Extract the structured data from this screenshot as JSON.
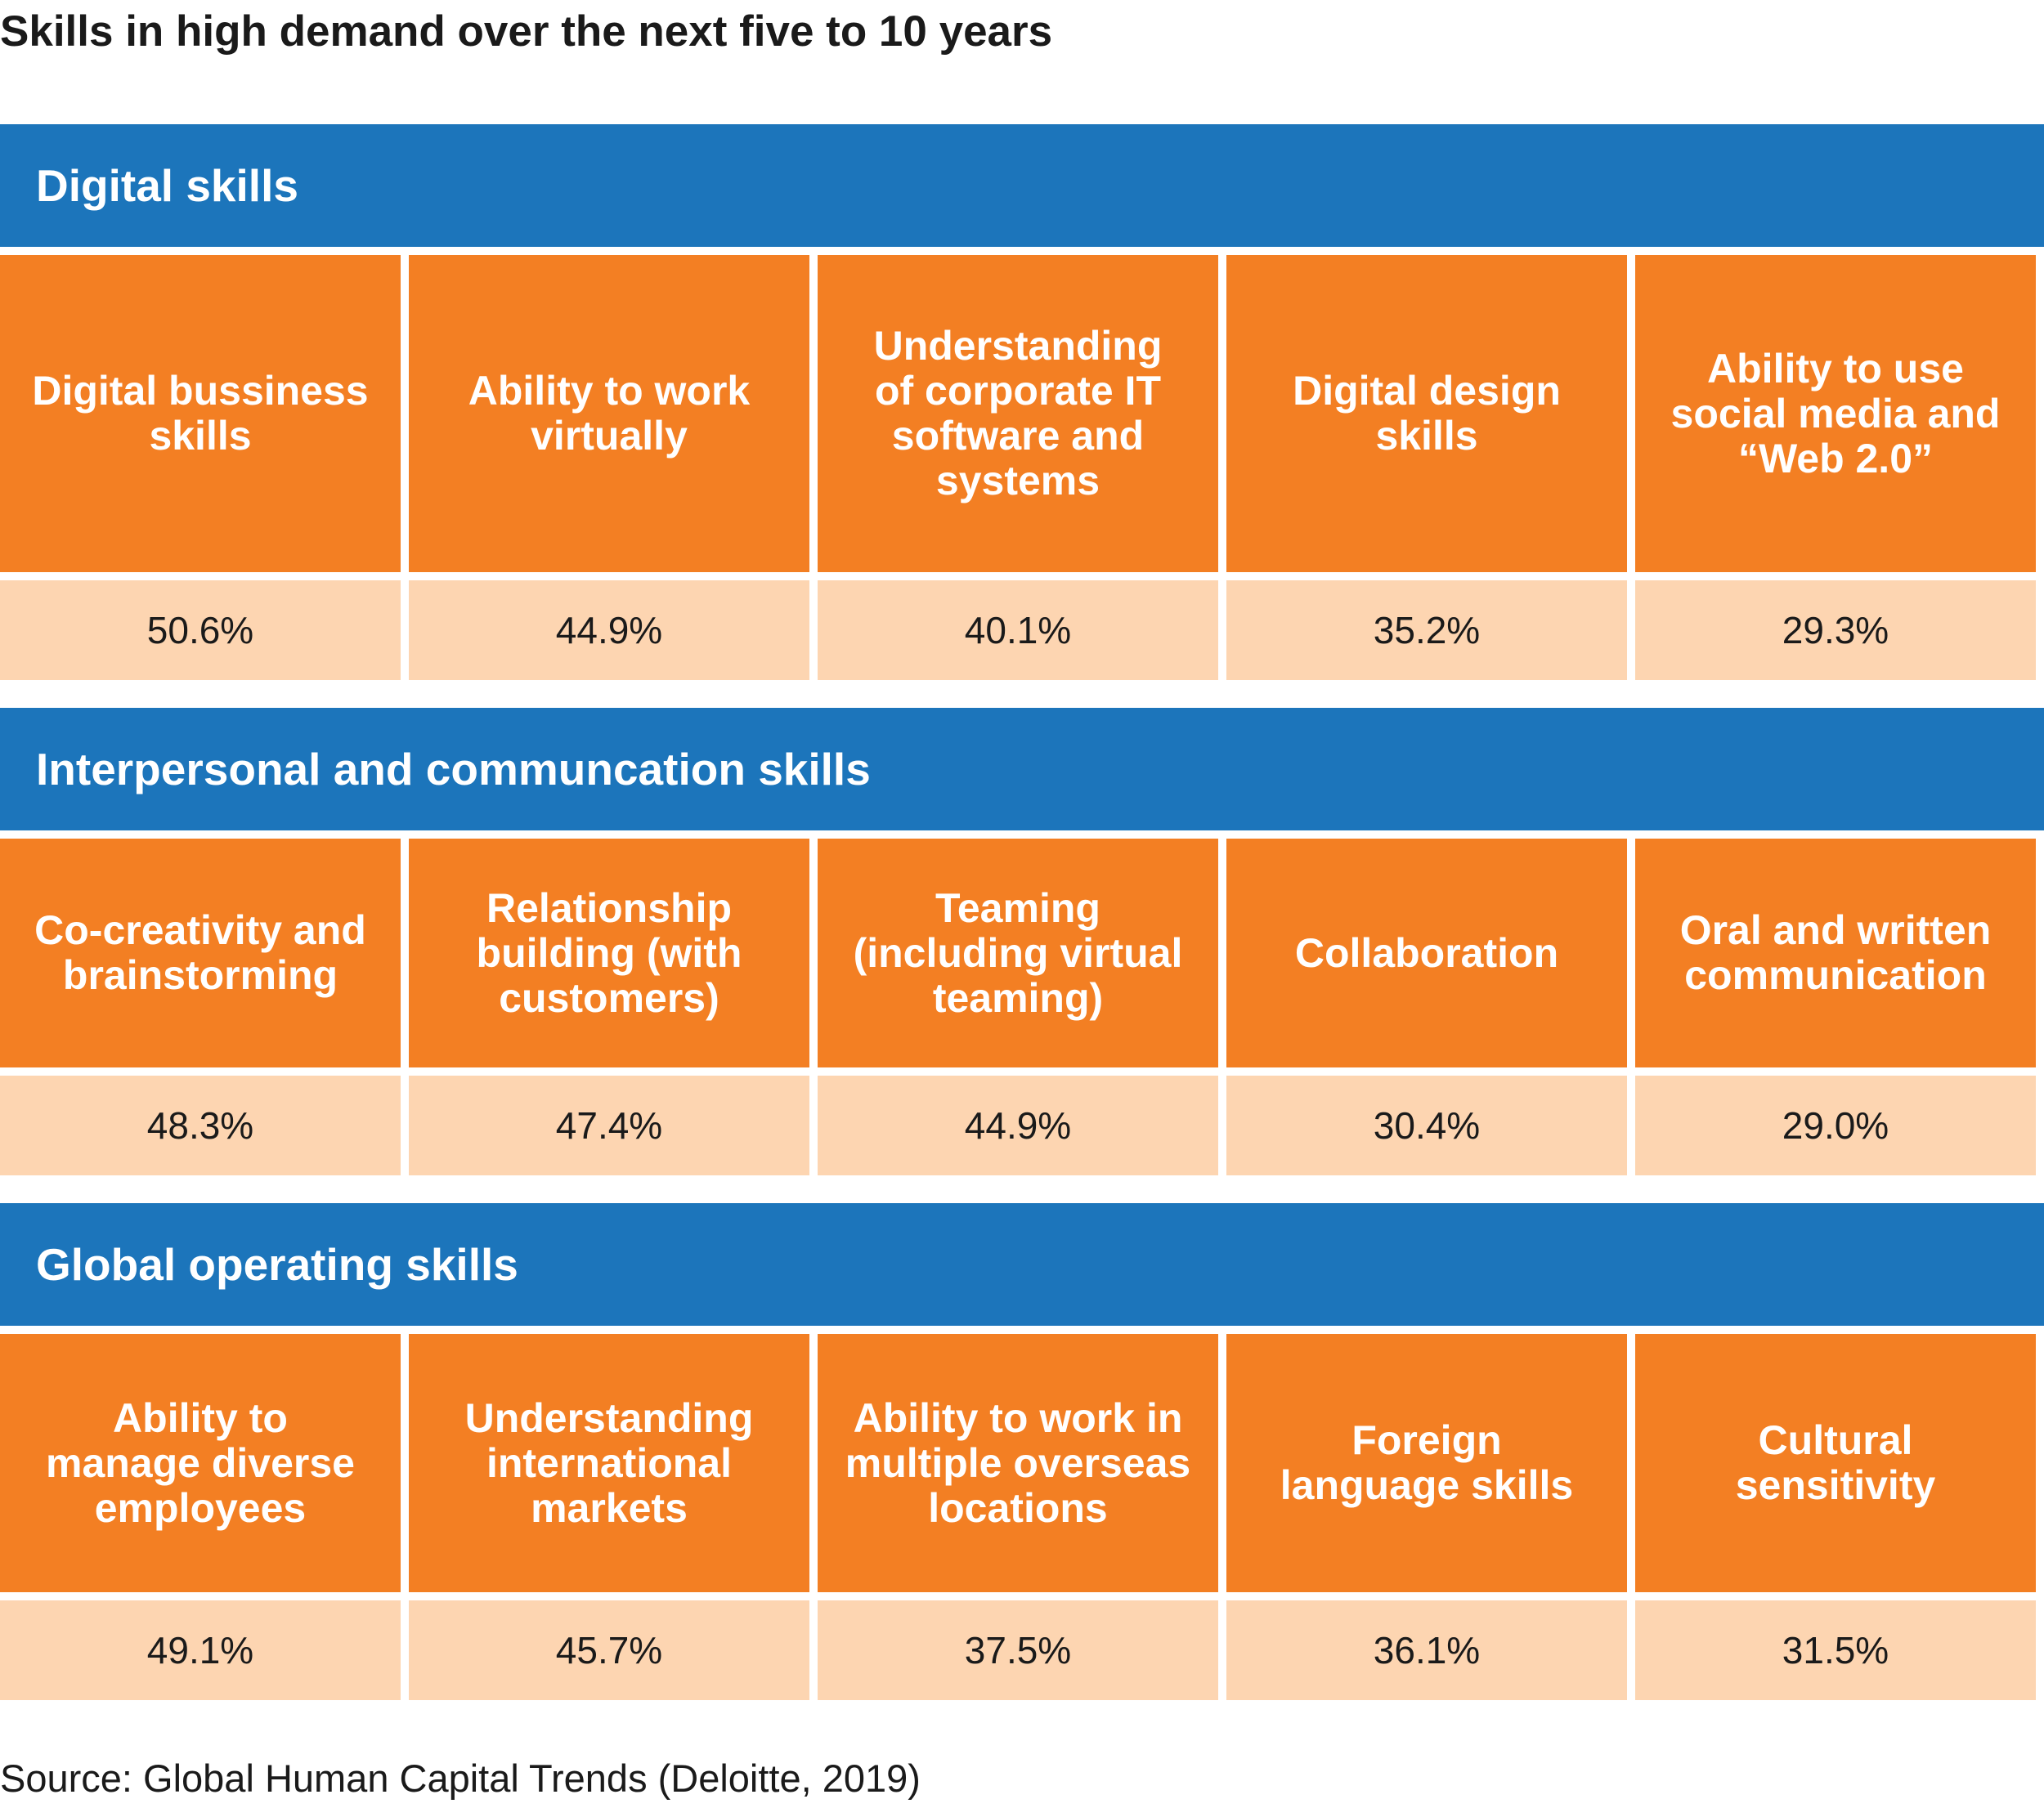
{
  "title": "Skills in high demand over the next five to 10 years",
  "source": "Source: Global Human Capital Trends (Deloitte, 2019)",
  "colors": {
    "header": "#1c75bb",
    "skill": "#f37f23",
    "value": "#fdd5b1"
  },
  "chart_data": {
    "type": "table",
    "title": "Skills in high demand over the next five to 10 years",
    "unit": "%",
    "groups": [
      {
        "name": "Digital skills",
        "skills": [
          {
            "label": "Digital bussiness skills",
            "value": 50.6,
            "display": "50.6%"
          },
          {
            "label": "Ability to work virtually",
            "value": 44.9,
            "display": "44.9%"
          },
          {
            "label": "Understanding of corporate IT software and systems",
            "value": 40.1,
            "display": "40.1%"
          },
          {
            "label": "Digital design skills",
            "value": 35.2,
            "display": "35.2%"
          },
          {
            "label": "Ability to use social media and “Web 2.0”",
            "value": 29.3,
            "display": "29.3%"
          }
        ]
      },
      {
        "name": "Interpersonal and communcation skills",
        "skills": [
          {
            "label": "Co-creativity and brainstorming",
            "value": 48.3,
            "display": "48.3%"
          },
          {
            "label": "Relationship building (with customers)",
            "value": 47.4,
            "display": "47.4%"
          },
          {
            "label": "Teaming (including virtual teaming)",
            "value": 44.9,
            "display": "44.9%"
          },
          {
            "label": "Collaboration",
            "value": 30.4,
            "display": "30.4%"
          },
          {
            "label": "Oral and written communication",
            "value": 29.0,
            "display": "29.0%"
          }
        ]
      },
      {
        "name": "Global operating skills",
        "skills": [
          {
            "label": "Ability to manage diverse employees",
            "value": 49.1,
            "display": "49.1%"
          },
          {
            "label": "Understanding international markets",
            "value": 45.7,
            "display": "45.7%"
          },
          {
            "label": "Ability to work in multiple overseas locations",
            "value": 37.5,
            "display": "37.5%"
          },
          {
            "label": "Foreign language skills",
            "value": 36.1,
            "display": "36.1%"
          },
          {
            "label": "Cultural sensitivity",
            "value": 31.5,
            "display": "31.5%"
          }
        ]
      }
    ]
  }
}
